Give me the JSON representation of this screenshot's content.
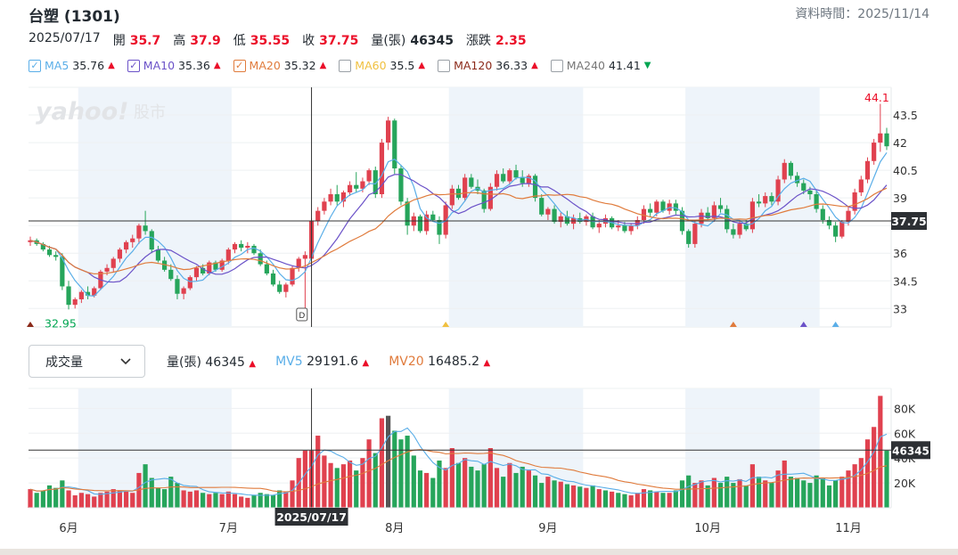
{
  "header": {
    "title": "台塑 (1301)",
    "update_label": "資料時間：2025/11/14"
  },
  "ohlc": {
    "date": "2025/07/17",
    "open_label": "開",
    "open": "35.7",
    "high_label": "高",
    "high": "37.9",
    "low_label": "低",
    "low": "35.55",
    "close_label": "收",
    "close": "37.75",
    "volume_label": "量(張)",
    "volume": "46345",
    "change_label": "漲跌",
    "change": "2.35"
  },
  "ma_legend": [
    {
      "name": "MA5",
      "value": "35.76",
      "color": "#5aaee8",
      "checked": true,
      "trend": "up"
    },
    {
      "name": "MA10",
      "value": "35.36",
      "color": "#6b52c8",
      "checked": true,
      "trend": "up"
    },
    {
      "name": "MA20",
      "value": "35.32",
      "color": "#e07b3c",
      "checked": true,
      "trend": "up"
    },
    {
      "name": "MA60",
      "value": "35.5",
      "color": "#f0c040",
      "checked": false,
      "trend": "up"
    },
    {
      "name": "MA120",
      "value": "36.33",
      "color": "#8b2a1a",
      "checked": false,
      "trend": "up"
    },
    {
      "name": "MA240",
      "value": "41.41",
      "color": "#777777",
      "checked": false,
      "trend": "down"
    }
  ],
  "watermark": {
    "brand": "yahoo!",
    "section": "股市"
  },
  "volume_panel": {
    "select_label": "成交量",
    "vol_label": "量(張)",
    "vol_value": "46345",
    "mv5_label": "MV5",
    "mv5_value": "29191.6",
    "mv20_label": "MV20",
    "mv20_value": "16485.2"
  },
  "crosshair": {
    "date_label": "2025/07/17",
    "price_label": "37.75",
    "volume_label": "46345",
    "event_marker": "D"
  },
  "chart_data": [
    {
      "type": "candlestick",
      "ylim": [
        32,
        45
      ],
      "price_ticks": [
        "33",
        "34.5",
        "36",
        "37.5",
        "39",
        "40.5",
        "42",
        "43.5"
      ],
      "annotations": {
        "low": "32.95",
        "high": "44.1"
      },
      "x_labels": [
        "6月",
        "7月",
        "8月",
        "9月",
        "10月",
        "11月"
      ],
      "candles": [
        [
          36.6,
          36.9,
          36.4,
          36.7
        ],
        [
          36.7,
          36.8,
          36.4,
          36.5
        ],
        [
          36.5,
          36.6,
          36.1,
          36.2
        ],
        [
          36.2,
          36.4,
          35.8,
          35.9
        ],
        [
          35.9,
          36.1,
          35.6,
          35.8
        ],
        [
          35.8,
          36.0,
          34.0,
          34.2
        ],
        [
          34.2,
          34.5,
          32.95,
          33.2
        ],
        [
          33.2,
          33.6,
          33.0,
          33.5
        ],
        [
          33.5,
          34.0,
          33.3,
          33.9
        ],
        [
          33.9,
          34.2,
          33.5,
          33.7
        ],
        [
          33.7,
          34.2,
          33.6,
          34.1
        ],
        [
          34.1,
          35.1,
          34.0,
          35.0
        ],
        [
          35.0,
          35.4,
          34.8,
          35.2
        ],
        [
          35.2,
          35.8,
          35.0,
          35.7
        ],
        [
          35.7,
          36.3,
          35.5,
          36.2
        ],
        [
          36.2,
          36.7,
          36.0,
          36.6
        ],
        [
          36.6,
          37.0,
          36.3,
          36.8
        ],
        [
          36.8,
          37.6,
          36.5,
          37.5
        ],
        [
          37.5,
          38.3,
          37.0,
          37.2
        ],
        [
          37.2,
          37.3,
          36.0,
          36.2
        ],
        [
          36.2,
          36.4,
          35.5,
          35.6
        ],
        [
          35.6,
          35.8,
          35.0,
          35.1
        ],
        [
          35.1,
          35.4,
          34.5,
          34.6
        ],
        [
          34.6,
          34.8,
          33.5,
          33.8
        ],
        [
          33.8,
          34.2,
          33.5,
          34.1
        ],
        [
          34.1,
          34.8,
          34.0,
          34.7
        ],
        [
          34.7,
          35.3,
          34.5,
          35.2
        ],
        [
          35.2,
          35.4,
          34.8,
          34.9
        ],
        [
          34.9,
          35.6,
          34.8,
          35.5
        ],
        [
          35.5,
          35.6,
          35.0,
          35.1
        ],
        [
          35.1,
          35.7,
          35.0,
          35.6
        ],
        [
          35.6,
          36.3,
          35.4,
          36.2
        ],
        [
          36.2,
          36.6,
          36.0,
          36.5
        ],
        [
          36.5,
          36.7,
          36.1,
          36.3
        ],
        [
          36.3,
          36.6,
          36.0,
          36.4
        ],
        [
          36.4,
          36.5,
          35.9,
          36.0
        ],
        [
          36.0,
          36.2,
          35.3,
          35.4
        ],
        [
          35.4,
          35.6,
          34.8,
          34.9
        ],
        [
          34.9,
          35.1,
          34.2,
          34.3
        ],
        [
          34.3,
          34.5,
          33.8,
          33.9
        ],
        [
          33.9,
          34.4,
          33.6,
          34.3
        ],
        [
          34.3,
          35.3,
          34.2,
          35.2
        ],
        [
          35.2,
          35.8,
          35.0,
          35.7
        ],
        [
          35.7,
          36.1,
          33.0,
          35.9
        ],
        [
          35.7,
          37.9,
          35.55,
          37.75
        ],
        [
          37.75,
          38.5,
          37.5,
          38.3
        ],
        [
          38.3,
          39.0,
          38.1,
          38.8
        ],
        [
          38.8,
          39.5,
          38.6,
          39.2
        ],
        [
          39.2,
          39.7,
          38.6,
          38.8
        ],
        [
          38.8,
          39.4,
          38.5,
          39.3
        ],
        [
          39.3,
          39.9,
          39.1,
          39.7
        ],
        [
          39.7,
          40.4,
          39.3,
          39.5
        ],
        [
          39.5,
          40.1,
          39.3,
          39.9
        ],
        [
          39.9,
          40.6,
          39.7,
          40.5
        ],
        [
          40.5,
          40.7,
          39.0,
          39.2
        ],
        [
          39.2,
          42.2,
          39.0,
          42.0
        ],
        [
          42.0,
          43.4,
          41.6,
          43.2
        ],
        [
          43.2,
          43.3,
          40.3,
          40.6
        ],
        [
          40.6,
          40.8,
          38.6,
          38.8
        ],
        [
          38.8,
          39.0,
          37.0,
          37.5
        ],
        [
          37.5,
          38.2,
          37.2,
          38.0
        ],
        [
          38.0,
          38.1,
          37.1,
          37.2
        ],
        [
          37.2,
          38.3,
          37.0,
          38.1
        ],
        [
          38.1,
          38.3,
          37.7,
          37.8
        ],
        [
          37.8,
          38.0,
          36.5,
          37.0
        ],
        [
          37.0,
          38.8,
          36.8,
          38.6
        ],
        [
          38.6,
          39.7,
          38.4,
          39.5
        ],
        [
          39.5,
          39.7,
          38.9,
          39.0
        ],
        [
          39.0,
          40.3,
          38.8,
          40.1
        ],
        [
          40.1,
          40.3,
          39.5,
          39.6
        ],
        [
          39.6,
          40.0,
          39.2,
          39.4
        ],
        [
          39.4,
          39.5,
          38.2,
          38.4
        ],
        [
          38.4,
          39.8,
          38.3,
          39.6
        ],
        [
          39.6,
          40.5,
          39.4,
          40.3
        ],
        [
          40.3,
          40.6,
          39.8,
          39.9
        ],
        [
          39.9,
          40.6,
          39.7,
          40.5
        ],
        [
          40.5,
          40.8,
          40.0,
          40.1
        ],
        [
          40.1,
          40.5,
          39.6,
          39.8
        ],
        [
          39.8,
          40.3,
          39.6,
          40.2
        ],
        [
          40.2,
          40.3,
          38.8,
          39.0
        ],
        [
          39.0,
          39.2,
          38.0,
          38.1
        ],
        [
          38.1,
          38.5,
          37.8,
          38.4
        ],
        [
          38.4,
          38.6,
          37.6,
          37.7
        ],
        [
          37.7,
          38.2,
          37.4,
          38.0
        ],
        [
          38.0,
          38.3,
          37.5,
          37.6
        ],
        [
          37.6,
          38.1,
          37.3,
          37.9
        ],
        [
          37.9,
          38.2,
          37.6,
          37.7
        ],
        [
          37.7,
          38.1,
          37.5,
          38.0
        ],
        [
          38.0,
          38.2,
          37.3,
          37.4
        ],
        [
          37.4,
          37.8,
          37.1,
          37.6
        ],
        [
          37.6,
          38.1,
          37.4,
          37.9
        ],
        [
          37.9,
          38.0,
          37.3,
          37.4
        ],
        [
          37.4,
          37.8,
          37.2,
          37.5
        ],
        [
          37.5,
          37.7,
          37.1,
          37.2
        ],
        [
          37.2,
          37.6,
          37.0,
          37.5
        ],
        [
          37.5,
          38.0,
          37.3,
          37.8
        ],
        [
          37.8,
          38.6,
          37.6,
          38.4
        ],
        [
          38.4,
          38.7,
          38.0,
          38.2
        ],
        [
          38.2,
          38.9,
          38.0,
          38.8
        ],
        [
          38.8,
          38.9,
          38.2,
          38.3
        ],
        [
          38.3,
          38.9,
          38.1,
          38.7
        ],
        [
          38.7,
          38.9,
          38.1,
          38.3
        ],
        [
          38.3,
          38.5,
          37.0,
          37.2
        ],
        [
          37.2,
          37.3,
          36.3,
          36.5
        ],
        [
          36.5,
          37.8,
          36.3,
          37.6
        ],
        [
          37.6,
          38.4,
          37.4,
          38.2
        ],
        [
          38.2,
          38.5,
          37.8,
          37.9
        ],
        [
          37.9,
          38.8,
          37.7,
          38.6
        ],
        [
          38.6,
          39.0,
          38.2,
          38.4
        ],
        [
          38.4,
          38.6,
          37.1,
          37.3
        ],
        [
          37.3,
          37.6,
          36.8,
          37.0
        ],
        [
          37.0,
          37.8,
          36.8,
          37.6
        ],
        [
          37.6,
          37.8,
          37.2,
          37.3
        ],
        [
          37.3,
          39.0,
          37.1,
          38.8
        ],
        [
          38.8,
          39.2,
          38.5,
          38.7
        ],
        [
          38.7,
          39.3,
          38.5,
          39.1
        ],
        [
          39.1,
          39.3,
          38.6,
          38.8
        ],
        [
          38.8,
          40.2,
          38.6,
          40.0
        ],
        [
          40.0,
          41.1,
          39.8,
          40.9
        ],
        [
          40.9,
          41.0,
          40.0,
          40.2
        ],
        [
          40.2,
          40.4,
          39.6,
          39.8
        ],
        [
          39.8,
          40.0,
          39.2,
          39.4
        ],
        [
          39.4,
          39.6,
          38.9,
          39.2
        ],
        [
          39.2,
          39.4,
          38.2,
          38.4
        ],
        [
          38.4,
          38.6,
          37.6,
          37.8
        ],
        [
          37.8,
          38.0,
          37.3,
          37.5
        ],
        [
          37.5,
          37.7,
          36.6,
          36.9
        ],
        [
          36.9,
          37.8,
          36.8,
          37.7
        ],
        [
          37.7,
          38.5,
          37.5,
          38.3
        ],
        [
          38.3,
          39.5,
          38.1,
          39.3
        ],
        [
          39.3,
          40.2,
          39.1,
          40.0
        ],
        [
          40.0,
          41.2,
          39.8,
          41.0
        ],
        [
          41.0,
          42.2,
          40.8,
          42.0
        ],
        [
          42.0,
          44.1,
          41.5,
          42.5
        ],
        [
          42.5,
          42.8,
          41.6,
          41.8
        ]
      ],
      "volumes": [
        [
          15,
          1
        ],
        [
          12,
          0
        ],
        [
          14,
          0
        ],
        [
          18,
          0
        ],
        [
          16,
          0
        ],
        [
          22,
          0
        ],
        [
          14,
          1
        ],
        [
          10,
          1
        ],
        [
          12,
          1
        ],
        [
          11,
          1
        ],
        [
          9,
          1
        ],
        [
          12,
          1
        ],
        [
          13,
          1
        ],
        [
          15,
          1
        ],
        [
          14,
          1
        ],
        [
          13,
          1
        ],
        [
          12,
          1
        ],
        [
          28,
          1
        ],
        [
          35,
          0
        ],
        [
          24,
          0
        ],
        [
          16,
          0
        ],
        [
          15,
          0
        ],
        [
          25,
          0
        ],
        [
          20,
          0
        ],
        [
          14,
          1
        ],
        [
          13,
          1
        ],
        [
          14,
          1
        ],
        [
          12,
          0
        ],
        [
          11,
          1
        ],
        [
          12,
          0
        ],
        [
          11,
          1
        ],
        [
          13,
          1
        ],
        [
          11,
          1
        ],
        [
          9,
          1
        ],
        [
          8,
          1
        ],
        [
          10,
          0
        ],
        [
          12,
          0
        ],
        [
          11,
          0
        ],
        [
          10,
          0
        ],
        [
          14,
          0
        ],
        [
          13,
          1
        ],
        [
          22,
          1
        ],
        [
          40,
          1
        ],
        [
          46,
          1
        ],
        [
          46,
          1
        ],
        [
          58,
          1
        ],
        [
          42,
          1
        ],
        [
          36,
          1
        ],
        [
          32,
          0
        ],
        [
          35,
          1
        ],
        [
          38,
          1
        ],
        [
          30,
          0
        ],
        [
          40,
          1
        ],
        [
          55,
          1
        ],
        [
          44,
          0
        ],
        [
          72,
          1
        ],
        [
          74,
          0
        ],
        [
          62,
          0
        ],
        [
          55,
          0
        ],
        [
          58,
          0
        ],
        [
          42,
          0
        ],
        [
          30,
          0
        ],
        [
          28,
          1
        ],
        [
          24,
          0
        ],
        [
          38,
          0
        ],
        [
          32,
          1
        ],
        [
          48,
          1
        ],
        [
          36,
          0
        ],
        [
          40,
          1
        ],
        [
          33,
          0
        ],
        [
          30,
          0
        ],
        [
          35,
          0
        ],
        [
          48,
          1
        ],
        [
          32,
          1
        ],
        [
          25,
          0
        ],
        [
          36,
          1
        ],
        [
          28,
          0
        ],
        [
          33,
          0
        ],
        [
          30,
          1
        ],
        [
          26,
          0
        ],
        [
          20,
          0
        ],
        [
          25,
          1
        ],
        [
          22,
          0
        ],
        [
          21,
          1
        ],
        [
          19,
          0
        ],
        [
          18,
          1
        ],
        [
          17,
          0
        ],
        [
          16,
          1
        ],
        [
          18,
          0
        ],
        [
          15,
          1
        ],
        [
          14,
          0
        ],
        [
          13,
          1
        ],
        [
          12,
          0
        ],
        [
          11,
          0
        ],
        [
          10,
          1
        ],
        [
          12,
          1
        ],
        [
          15,
          1
        ],
        [
          14,
          0
        ],
        [
          13,
          1
        ],
        [
          12,
          0
        ],
        [
          12,
          1
        ],
        [
          14,
          0
        ],
        [
          22,
          0
        ],
        [
          26,
          0
        ],
        [
          20,
          1
        ],
        [
          22,
          1
        ],
        [
          18,
          0
        ],
        [
          24,
          1
        ],
        [
          20,
          0
        ],
        [
          25,
          0
        ],
        [
          20,
          0
        ],
        [
          23,
          1
        ],
        [
          18,
          0
        ],
        [
          35,
          1
        ],
        [
          25,
          0
        ],
        [
          22,
          1
        ],
        [
          20,
          0
        ],
        [
          30,
          1
        ],
        [
          38,
          1
        ],
        [
          25,
          0
        ],
        [
          24,
          0
        ],
        [
          22,
          0
        ],
        [
          20,
          0
        ],
        [
          26,
          0
        ],
        [
          24,
          0
        ],
        [
          18,
          0
        ],
        [
          22,
          0
        ],
        [
          25,
          1
        ],
        [
          30,
          1
        ],
        [
          35,
          1
        ],
        [
          40,
          1
        ],
        [
          55,
          1
        ],
        [
          65,
          1
        ],
        [
          90,
          1
        ],
        [
          46,
          0
        ]
      ],
      "volume_ticks": [
        "20K",
        "40K",
        "60K",
        "80K"
      ]
    }
  ]
}
